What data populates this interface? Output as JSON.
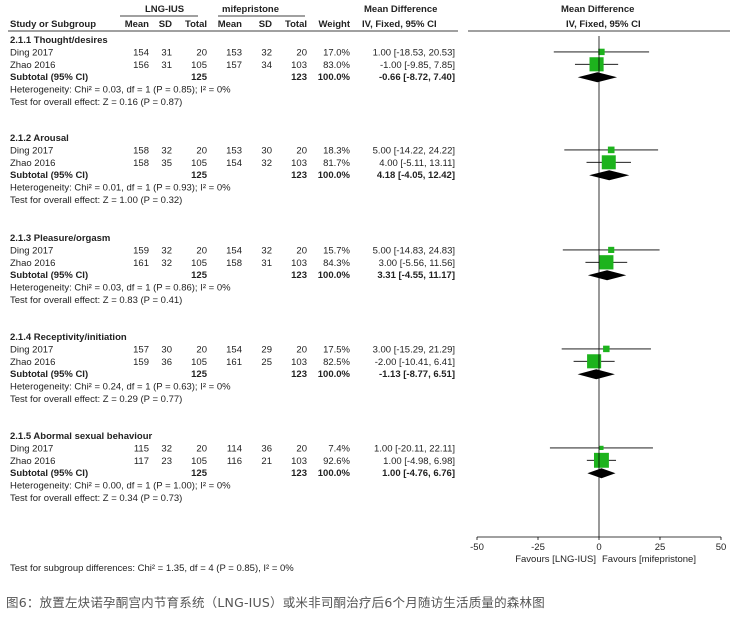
{
  "header": {
    "group1": "LNG-IUS",
    "group2": "mifepristone",
    "md_title": "Mean Difference",
    "md_sub": "IV, Fixed, 95% CI",
    "plot_title": "Mean Difference",
    "plot_sub": "IV, Fixed, 95% CI",
    "col_study": "Study or Subgroup",
    "col_mean": "Mean",
    "col_sd": "SD",
    "col_total": "Total",
    "col_weight": "Weight"
  },
  "chart_data": {
    "type": "forest",
    "xlim": [
      -50,
      50
    ],
    "ticks": [
      "-50",
      "-25",
      "0",
      "25",
      "50"
    ],
    "favours_left": "Favours [LNG-IUS]",
    "favours_right": "Favours [mifepristone]",
    "subgroups": [
      {
        "title": "2.1.1 Thought/desires",
        "studies": [
          {
            "name": "Ding 2017",
            "m1": "154",
            "sd1": "31",
            "n1": "20",
            "m2": "153",
            "sd2": "32",
            "n2": "20",
            "weight": "17.0%",
            "ci_text": "1.00 [-18.53, 20.53]",
            "md": 1.0,
            "lo": -18.53,
            "hi": 20.53,
            "w": 17.0
          },
          {
            "name": "Zhao 2016",
            "m1": "156",
            "sd1": "31",
            "n1": "105",
            "m2": "157",
            "sd2": "34",
            "n2": "103",
            "weight": "83.0%",
            "ci_text": "-1.00 [-9.85, 7.85]",
            "md": -1.0,
            "lo": -9.85,
            "hi": 7.85,
            "w": 83.0
          }
        ],
        "subtotal": {
          "label": "Subtotal (95% CI)",
          "n1": "125",
          "n2": "123",
          "weight": "100.0%",
          "ci_text": "-0.66 [-8.72, 7.40]",
          "md": -0.66,
          "lo": -8.72,
          "hi": 7.4
        },
        "heterogeneity": "Heterogeneity: Chi² = 0.03, df = 1 (P = 0.85); I² = 0%",
        "overall": "Test for overall effect: Z = 0.16 (P = 0.87)"
      },
      {
        "title": "2.1.2 Arousal",
        "studies": [
          {
            "name": "Ding 2017",
            "m1": "158",
            "sd1": "32",
            "n1": "20",
            "m2": "153",
            "sd2": "30",
            "n2": "20",
            "weight": "18.3%",
            "ci_text": "5.00 [-14.22, 24.22]",
            "md": 5.0,
            "lo": -14.22,
            "hi": 24.22,
            "w": 18.3
          },
          {
            "name": "Zhao 2016",
            "m1": "158",
            "sd1": "35",
            "n1": "105",
            "m2": "154",
            "sd2": "32",
            "n2": "103",
            "weight": "81.7%",
            "ci_text": "4.00 [-5.11, 13.11]",
            "md": 4.0,
            "lo": -5.11,
            "hi": 13.11,
            "w": 81.7
          }
        ],
        "subtotal": {
          "label": "Subtotal (95% CI)",
          "n1": "125",
          "n2": "123",
          "weight": "100.0%",
          "ci_text": "4.18 [-4.05, 12.42]",
          "md": 4.18,
          "lo": -4.05,
          "hi": 12.42
        },
        "heterogeneity": "Heterogeneity: Chi² = 0.01, df = 1 (P = 0.93); I² = 0%",
        "overall": "Test for overall effect: Z = 1.00 (P = 0.32)"
      },
      {
        "title": "2.1.3 Pleasure/orgasm",
        "studies": [
          {
            "name": "Ding 2017",
            "m1": "159",
            "sd1": "32",
            "n1": "20",
            "m2": "154",
            "sd2": "32",
            "n2": "20",
            "weight": "15.7%",
            "ci_text": "5.00 [-14.83, 24.83]",
            "md": 5.0,
            "lo": -14.83,
            "hi": 24.83,
            "w": 15.7
          },
          {
            "name": "Zhao 2016",
            "m1": "161",
            "sd1": "32",
            "n1": "105",
            "m2": "158",
            "sd2": "31",
            "n2": "103",
            "weight": "84.3%",
            "ci_text": "3.00 [-5.56, 11.56]",
            "md": 3.0,
            "lo": -5.56,
            "hi": 11.56,
            "w": 84.3
          }
        ],
        "subtotal": {
          "label": "Subtotal (95% CI)",
          "n1": "125",
          "n2": "123",
          "weight": "100.0%",
          "ci_text": "3.31 [-4.55, 11.17]",
          "md": 3.31,
          "lo": -4.55,
          "hi": 11.17
        },
        "heterogeneity": "Heterogeneity: Chi² = 0.03, df = 1 (P = 0.86); I² = 0%",
        "overall": "Test for overall effect: Z = 0.83 (P = 0.41)"
      },
      {
        "title": "2.1.4 Receptivity/initiation",
        "studies": [
          {
            "name": "Ding 2017",
            "m1": "157",
            "sd1": "30",
            "n1": "20",
            "m2": "154",
            "sd2": "29",
            "n2": "20",
            "weight": "17.5%",
            "ci_text": "3.00 [-15.29, 21.29]",
            "md": 3.0,
            "lo": -15.29,
            "hi": 21.29,
            "w": 17.5
          },
          {
            "name": "Zhao 2016",
            "m1": "159",
            "sd1": "36",
            "n1": "105",
            "m2": "161",
            "sd2": "25",
            "n2": "103",
            "weight": "82.5%",
            "ci_text": "-2.00 [-10.41, 6.41]",
            "md": -2.0,
            "lo": -10.41,
            "hi": 6.41,
            "w": 82.5
          }
        ],
        "subtotal": {
          "label": "Subtotal (95% CI)",
          "n1": "125",
          "n2": "123",
          "weight": "100.0%",
          "ci_text": "-1.13 [-8.77, 6.51]",
          "md": -1.13,
          "lo": -8.77,
          "hi": 6.51
        },
        "heterogeneity": "Heterogeneity: Chi² = 0.24, df = 1 (P = 0.63); I² = 0%",
        "overall": "Test for overall effect: Z = 0.29 (P = 0.77)"
      },
      {
        "title": "2.1.5 Abormal sexual behaviour",
        "studies": [
          {
            "name": "Ding 2017",
            "m1": "115",
            "sd1": "32",
            "n1": "20",
            "m2": "114",
            "sd2": "36",
            "n2": "20",
            "weight": "7.4%",
            "ci_text": "1.00 [-20.11, 22.11]",
            "md": 1.0,
            "lo": -20.11,
            "hi": 22.11,
            "w": 7.4
          },
          {
            "name": "Zhao 2016",
            "m1": "117",
            "sd1": "23",
            "n1": "105",
            "m2": "116",
            "sd2": "21",
            "n2": "103",
            "weight": "92.6%",
            "ci_text": "1.00 [-4.98, 6.98]",
            "md": 1.0,
            "lo": -4.98,
            "hi": 6.98,
            "w": 92.6
          }
        ],
        "subtotal": {
          "label": "Subtotal (95% CI)",
          "n1": "125",
          "n2": "123",
          "weight": "100.0%",
          "ci_text": "1.00 [-4.76, 6.76]",
          "md": 1.0,
          "lo": -4.76,
          "hi": 6.76
        },
        "heterogeneity": "Heterogeneity: Chi² = 0.00, df = 1 (P = 1.00); I² = 0%",
        "overall": "Test for overall effect: Z = 0.34 (P = 0.73)"
      }
    ],
    "subgroup_test": "Test for subgroup differences: Chi² = 1.35, df = 4 (P = 0.85), I² = 0%"
  },
  "colors": {
    "square": "#1db31d",
    "diamond": "#000000",
    "line": "#000000"
  },
  "caption": "图6：放置左炔诺孕酮宫内节育系统（LNG-IUS）或米非司酮治疗后6个月随访生活质量的森林图"
}
